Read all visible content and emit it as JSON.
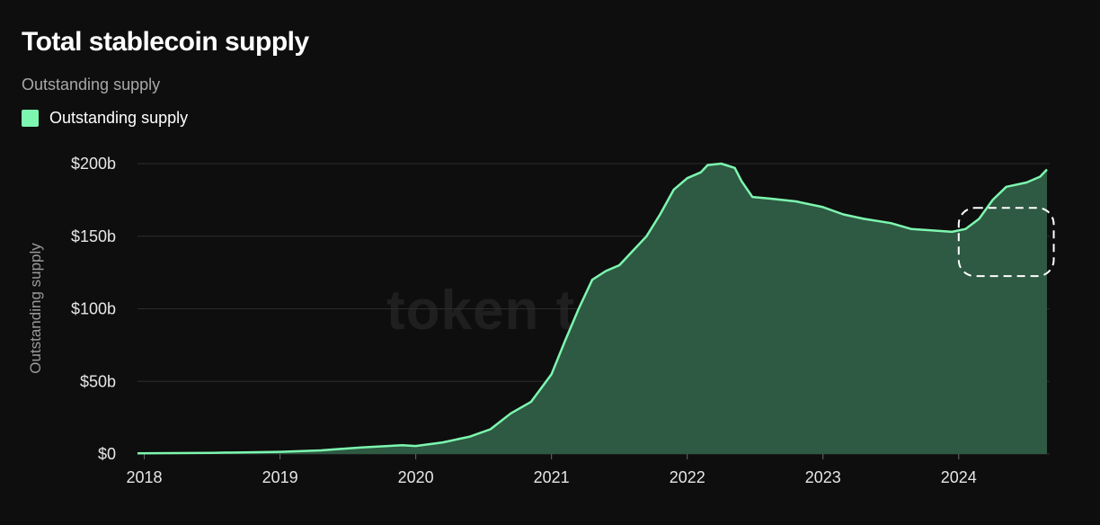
{
  "header": {
    "title": "Total stablecoin supply",
    "subtitle": "Outstanding supply"
  },
  "legend": {
    "label": "Outstanding supply",
    "color": "#7df7b0"
  },
  "watermark": "token terminal_",
  "colors": {
    "line": "#7df7b0",
    "area": "#2e5943",
    "grid": "#2c2c2c",
    "background": "#0e0e0e"
  },
  "chart_data": {
    "type": "area",
    "title": "Total stablecoin supply",
    "subtitle": "Outstanding supply",
    "ylabel": "Outstanding supply",
    "xlabel": "",
    "y_ticks": [
      "$0",
      "$50b",
      "$100b",
      "$150b",
      "$200b"
    ],
    "y_tick_values": [
      0,
      50,
      100,
      150,
      200
    ],
    "x_ticks": [
      "2018",
      "2019",
      "2020",
      "2021",
      "2022",
      "2023",
      "2024"
    ],
    "x_tick_values": [
      2018,
      2019,
      2020,
      2021,
      2022,
      2023,
      2024
    ],
    "xlim": [
      2017.95,
      2024.67
    ],
    "ylim": [
      0,
      200
    ],
    "grid": true,
    "legend_position": "top-left",
    "series": [
      {
        "name": "Outstanding supply",
        "x": [
          2017.95,
          2018.5,
          2019.0,
          2019.3,
          2019.6,
          2019.9,
          2020.0,
          2020.2,
          2020.4,
          2020.55,
          2020.7,
          2020.85,
          2021.0,
          2021.1,
          2021.2,
          2021.3,
          2021.4,
          2021.5,
          2021.6,
          2021.7,
          2021.8,
          2021.9,
          2022.0,
          2022.1,
          2022.15,
          2022.25,
          2022.35,
          2022.4,
          2022.48,
          2022.6,
          2022.8,
          2023.0,
          2023.15,
          2023.3,
          2023.5,
          2023.65,
          2023.8,
          2023.95,
          2024.05,
          2024.15,
          2024.25,
          2024.35,
          2024.5,
          2024.6,
          2024.65
        ],
        "y": [
          0.5,
          0.8,
          1.5,
          2.5,
          4.5,
          6.0,
          5.5,
          8.0,
          12.0,
          17.0,
          28.0,
          36.0,
          55.0,
          78.0,
          100.0,
          120.0,
          126.0,
          130.0,
          140.0,
          150.0,
          165.0,
          182.0,
          190.0,
          194.0,
          199.0,
          200.0,
          197.0,
          188.0,
          177.0,
          176.0,
          174.0,
          170.0,
          165.0,
          162.0,
          159.0,
          155.0,
          154.0,
          153.0,
          155.0,
          162.0,
          175.0,
          184.0,
          187.0,
          191.0,
          196.0
        ]
      }
    ],
    "highlight": {
      "x_range": [
        2024.0,
        2024.7
      ],
      "y_range": [
        122.5,
        169.5
      ]
    }
  }
}
